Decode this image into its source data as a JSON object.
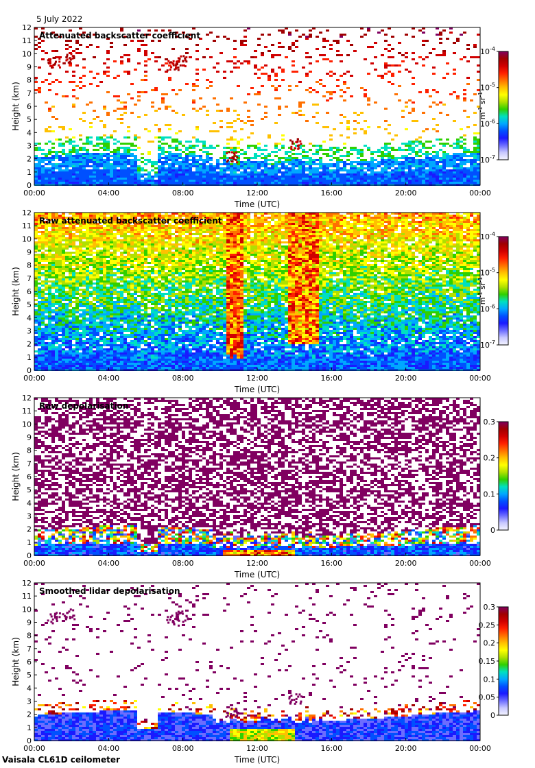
{
  "header": {
    "date": "5 July 2022"
  },
  "footer": {
    "instrument": "Vaisala CL61D ceilometer"
  },
  "palette": {
    "jet": [
      "#f4f4ff",
      "#c8c8ff",
      "#6c6cff",
      "#1a1aff",
      "#0050ff",
      "#00a8ff",
      "#00e0c0",
      "#30d000",
      "#b0e000",
      "#ffff00",
      "#ffc000",
      "#ff7000",
      "#ff2000",
      "#d00000",
      "#a00000",
      "#800060"
    ],
    "depol": [
      "#f4f4ff",
      "#c8c8ff",
      "#6c6cff",
      "#1a1aff",
      "#0050ff",
      "#00a8ff",
      "#00e0c0",
      "#30d000",
      "#b0e000",
      "#ffff00",
      "#ffc000",
      "#ff7000",
      "#ff2000",
      "#d00000",
      "#a00000",
      "#800060"
    ]
  },
  "chart_data": [
    {
      "type": "heatmap",
      "title": "Attenuated backscatter coefficient",
      "xlabel": "Time (UTC)",
      "ylabel": "Height (km)",
      "x_ticks": [
        "00:00",
        "04:00",
        "08:00",
        "12:00",
        "16:00",
        "20:00",
        "00:00"
      ],
      "y_ticks": [
        "0",
        "1",
        "2",
        "3",
        "4",
        "5",
        "6",
        "7",
        "8",
        "9",
        "10",
        "11",
        "12"
      ],
      "xlim": [
        0,
        24
      ],
      "ylim": [
        0,
        12
      ],
      "colorbar": {
        "ticks": [
          "10",
          "10",
          "10",
          "10"
        ],
        "tick_exponents": [
          "-4",
          "-5",
          "-6",
          "-7"
        ],
        "label": "m",
        "label_exp1": "-1",
        "label_mid": " sr",
        "label_exp2": "-1",
        "scale": "log",
        "range": [
          1e-07,
          0.0001
        ]
      },
      "style": "filtered"
    },
    {
      "type": "heatmap",
      "title": "Raw attenuated backscatter coefficient",
      "xlabel": "Time (UTC)",
      "ylabel": "Height (km)",
      "x_ticks": [
        "00:00",
        "04:00",
        "08:00",
        "12:00",
        "16:00",
        "20:00",
        "00:00"
      ],
      "y_ticks": [
        "0",
        "1",
        "2",
        "3",
        "4",
        "5",
        "6",
        "7",
        "8",
        "9",
        "10",
        "11",
        "12"
      ],
      "xlim": [
        0,
        24
      ],
      "ylim": [
        0,
        12
      ],
      "colorbar": {
        "ticks": [
          "10",
          "10",
          "10",
          "10"
        ],
        "tick_exponents": [
          "-4",
          "-5",
          "-6",
          "-7"
        ],
        "label": "m",
        "label_exp1": "-1",
        "label_mid": " sr",
        "label_exp2": "-1",
        "scale": "log",
        "range": [
          1e-07,
          0.0001
        ]
      },
      "style": "raw"
    },
    {
      "type": "heatmap",
      "title": "Raw depolarisation",
      "xlabel": "Time (UTC)",
      "ylabel": "Height (km)",
      "x_ticks": [
        "00:00",
        "04:00",
        "08:00",
        "12:00",
        "16:00",
        "20:00",
        "00:00"
      ],
      "y_ticks": [
        "0",
        "1",
        "2",
        "3",
        "4",
        "5",
        "6",
        "7",
        "8",
        "9",
        "10",
        "11",
        "12"
      ],
      "xlim": [
        0,
        24
      ],
      "ylim": [
        0,
        12
      ],
      "colorbar": {
        "ticks": [
          "0.3",
          "0.2",
          "0.1",
          "0"
        ],
        "range": [
          0,
          0.3
        ]
      },
      "style": "rawdepol"
    },
    {
      "type": "heatmap",
      "title": "Smoothed lidar depolarisation",
      "xlabel": "Time (UTC)",
      "ylabel": "Height (km)",
      "x_ticks": [
        "00:00",
        "04:00",
        "08:00",
        "12:00",
        "16:00",
        "20:00",
        "00:00"
      ],
      "y_ticks": [
        "0",
        "1",
        "2",
        "3",
        "4",
        "5",
        "6",
        "7",
        "8",
        "9",
        "10",
        "11",
        "12"
      ],
      "xlim": [
        0,
        24
      ],
      "ylim": [
        0,
        12
      ],
      "colorbar": {
        "ticks": [
          "0.3",
          "0.25",
          "0.2",
          "0.15",
          "0.1",
          "0.05",
          "0"
        ],
        "range": [
          0,
          0.3
        ]
      },
      "style": "smoothdepol"
    }
  ]
}
